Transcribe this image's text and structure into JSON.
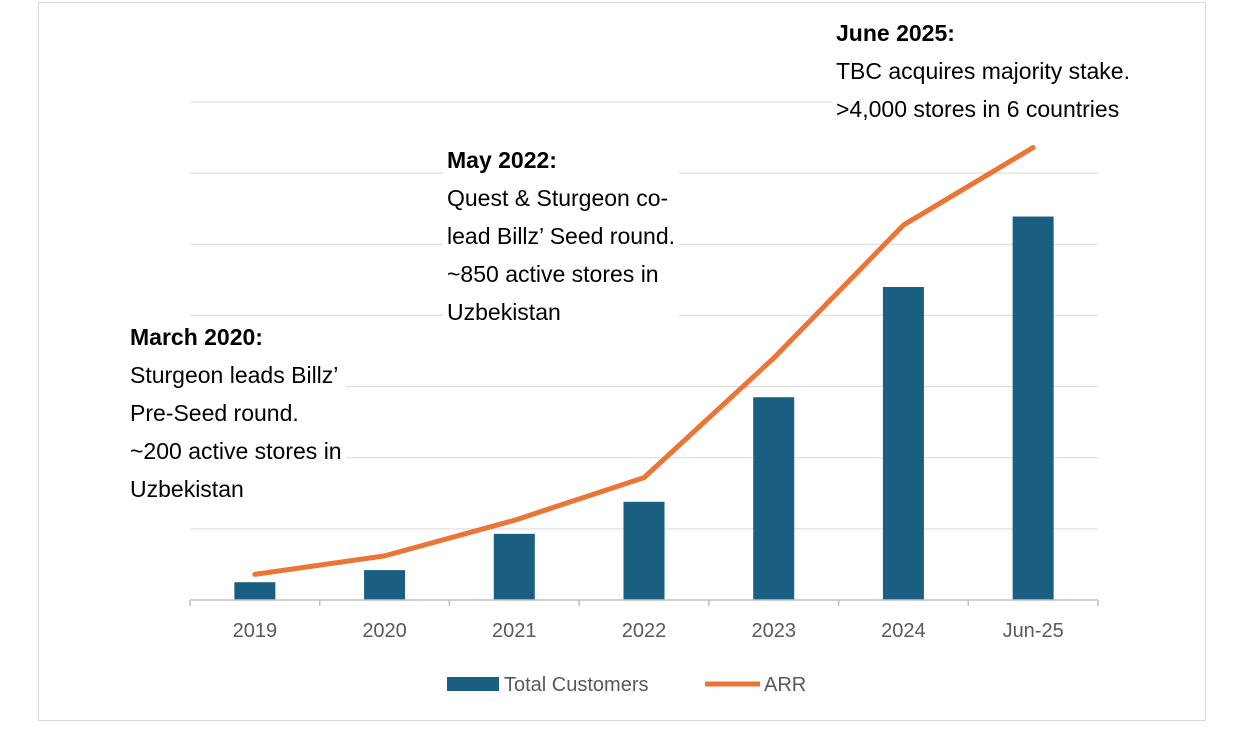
{
  "chart_data": {
    "type": "bar",
    "categories": [
      "2019",
      "2020",
      "2021",
      "2022",
      "2023",
      "2024",
      "Jun-25"
    ],
    "series": [
      {
        "name": "Total Customers",
        "type": "bar",
        "color": "#1a5f82",
        "values": [
          0.25,
          0.42,
          0.93,
          1.38,
          2.85,
          4.4,
          5.39
        ]
      },
      {
        "name": "ARR",
        "type": "line",
        "color": "#ec7535",
        "values": [
          0.36,
          0.62,
          1.12,
          1.72,
          3.4,
          5.27,
          6.36
        ]
      }
    ],
    "ylim": [
      0,
      7
    ],
    "grid": true,
    "legend": "bottom",
    "title": "",
    "xlabel": "",
    "ylabel": "",
    "annotations": [
      {
        "head": "March 2020:",
        "lines": [
          "Sturgeon leads Billz’",
          "Pre-Seed round.",
          "~200 active stores in",
          "Uzbekistan"
        ]
      },
      {
        "head": "May 2022:",
        "lines": [
          "Quest & Sturgeon co-",
          "lead Billz’ Seed round.",
          "~850 active stores in",
          "Uzbekistan"
        ]
      },
      {
        "head": "June 2025:",
        "lines": [
          "TBC acquires majority stake.",
          ">4,000 stores in 6 countries"
        ]
      }
    ]
  }
}
